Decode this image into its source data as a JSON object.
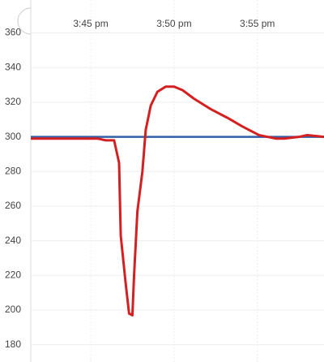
{
  "chart_data": {
    "type": "line",
    "xticks": [
      {
        "value": 45,
        "label": "3:45 pm"
      },
      {
        "value": 50,
        "label": "3:50 pm"
      },
      {
        "value": 55,
        "label": "3:55 pm"
      }
    ],
    "xlim": [
      41.4,
      59.0
    ],
    "ylim": [
      170,
      379
    ],
    "yticks": [
      180,
      200,
      220,
      240,
      260,
      280,
      300,
      320,
      340,
      360
    ],
    "grid": true,
    "series": [
      {
        "color": "#2e5fa8",
        "x": [
          41.4,
          59.0
        ],
        "values": [
          300,
          300
        ]
      },
      {
        "color": "#d42020",
        "x": [
          41.4,
          42.2,
          43.4,
          45.4,
          45.9,
          46.4,
          46.7,
          46.8,
          47.1,
          47.3,
          47.5,
          47.6,
          47.8,
          48.1,
          48.3,
          48.6,
          49.0,
          49.5,
          50.0,
          50.5,
          51.2,
          52.2,
          53.2,
          54.1,
          55.1,
          56.1,
          56.6,
          57.5,
          58.0,
          59.0
        ],
        "values": [
          299,
          299,
          299,
          299,
          298,
          298,
          285,
          243,
          215,
          198,
          197,
          220,
          257,
          280,
          304,
          318,
          326,
          329,
          329,
          327,
          322,
          316,
          311,
          306,
          301,
          299,
          299,
          300,
          301,
          300
        ]
      }
    ]
  }
}
